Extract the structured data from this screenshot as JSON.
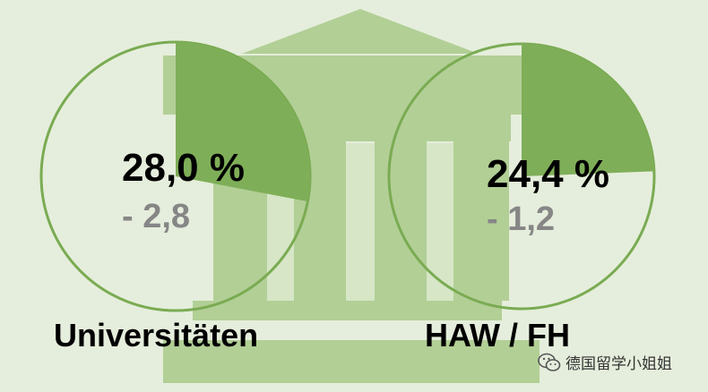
{
  "chart_data": {
    "type": "pie",
    "title": "",
    "charts": [
      {
        "label": "Universitäten",
        "value": 28.0,
        "value_text": "28,0 %",
        "change_text": "- 2,8"
      },
      {
        "label": "HAW / FH",
        "value": 24.4,
        "value_text": "24,4 %",
        "change_text": "- 1,2"
      }
    ],
    "colors": {
      "slice": "#7fae58",
      "ring": "#7aab52",
      "building": "#b2cf96",
      "building_light": "#d6e6c6",
      "background": "#e5eedc",
      "change_text": "#868686"
    }
  },
  "watermark": {
    "icon": "wechat-icon",
    "text": "德国留学小姐姐"
  }
}
